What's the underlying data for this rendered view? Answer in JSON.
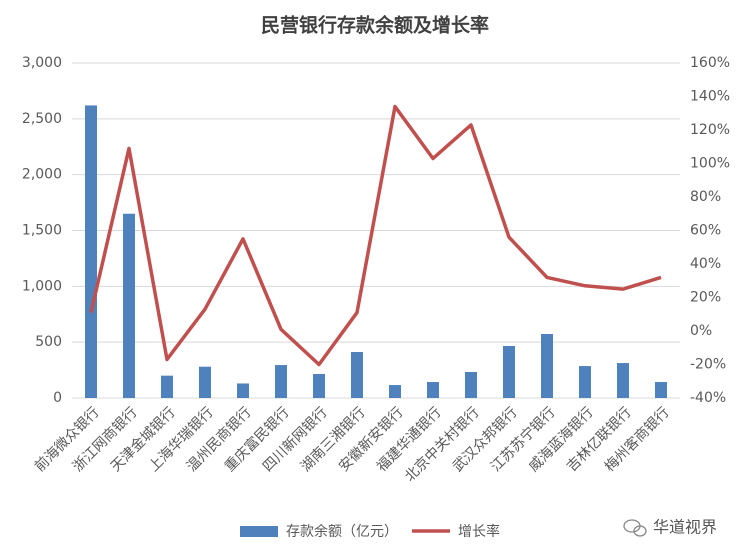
{
  "chart_data": {
    "type": "bar",
    "title": "民营银行存款余额及增长率",
    "categories": [
      "前海微众银行",
      "浙江网商银行",
      "天津金城银行",
      "上海华瑞银行",
      "温州民商银行",
      "重庆富民银行",
      "四川新网银行",
      "湖南三湘银行",
      "安徽新安银行",
      "福建华通银行",
      "北京中关村银行",
      "武汉众邦银行",
      "江苏苏宁银行",
      "威海蓝海银行",
      "吉林亿联银行",
      "梅州客商银行"
    ],
    "series": [
      {
        "name": "存款余额（亿元）",
        "type": "bar",
        "color": "#4f81bd",
        "values": [
          2620,
          1650,
          200,
          280,
          130,
          295,
          215,
          412,
          116,
          143,
          233,
          466,
          573,
          286,
          313,
          143
        ]
      },
      {
        "name": "增长率",
        "type": "line",
        "axis": "y2",
        "color": "#c0504d",
        "values": [
          11,
          109,
          -17,
          13,
          55,
          1,
          -20,
          11,
          134,
          103,
          123,
          56,
          32,
          27,
          25,
          32
        ]
      }
    ],
    "ylim": [
      0,
      3000
    ],
    "yticks": [
      0,
      500,
      {
        "value": 1000,
        "label": "1,000"
      },
      {
        "value": 1500,
        "label": "1,500"
      },
      {
        "value": 2000,
        "label": "2,000"
      },
      {
        "value": 2500,
        "label": "2,500"
      },
      {
        "value": 3000,
        "label": "3,000"
      }
    ],
    "y2lim": [
      -40,
      160
    ],
    "y2ticks": [
      {
        "value": -40,
        "label": "-40%"
      },
      {
        "value": -20,
        "label": "-20%"
      },
      {
        "value": 0,
        "label": "0%"
      },
      {
        "value": 20,
        "label": "20%"
      },
      {
        "value": 40,
        "label": "40%"
      },
      {
        "value": 60,
        "label": "60%"
      },
      {
        "value": 80,
        "label": "80%"
      },
      {
        "value": 100,
        "label": "100%"
      },
      {
        "value": 120,
        "label": "120%"
      },
      {
        "value": 140,
        "label": "140%"
      },
      {
        "value": 160,
        "label": "160%"
      }
    ],
    "grid": true,
    "legend": "bottom",
    "watermark": "华道视界"
  }
}
